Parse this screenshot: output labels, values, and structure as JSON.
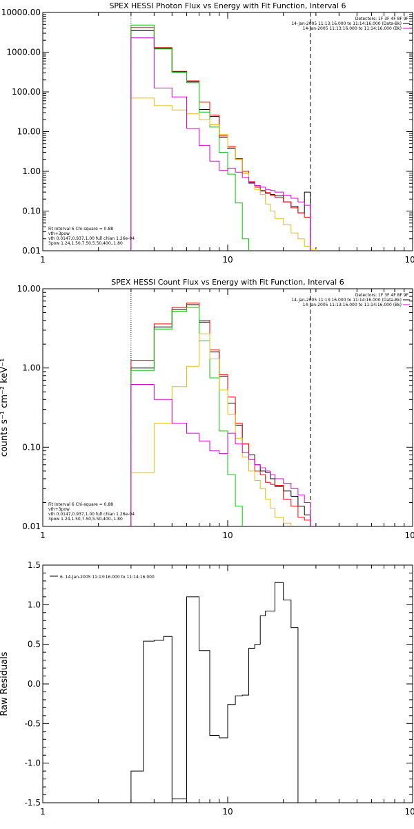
{
  "chart_data": [
    {
      "type": "line",
      "title": "SPEX HESSI Photon Flux vs Energy with Fit Function, Interval 6",
      "xlabel": "",
      "ylabel": "",
      "x_scale": "log",
      "y_scale": "log",
      "xlim": [
        1,
        100
      ],
      "ylim": [
        0.01,
        10000
      ],
      "x_ticks": [
        "1",
        "10",
        "100"
      ],
      "y_ticks": [
        "0.01",
        "0.10",
        "1.00",
        "10.00",
        "100.00",
        "1000.00",
        "10000.00"
      ],
      "y_tick_values": [
        0.01,
        0.1,
        1,
        10,
        100,
        1000,
        10000
      ],
      "vlines": [
        {
          "x": 3,
          "style": "dotted"
        },
        {
          "x": 28,
          "style": "dashed"
        }
      ],
      "legend_top": [
        "Detectors: 1F 3F 4F 8F 9F",
        "14-Jan-2005 11:13:16.000 to 11:14:16.000 (Data-Bk)",
        "14-Jan-2005 11:13:16.000 to 11:14:16.000 (Bk)"
      ],
      "legend_bottom": [
        "Fit Interval 6   Chi-square = 0.88",
        "vth+3pow",
        "vth 0.0147,0.937,1.00  full chian 1.26e-04",
        "3pow 1.24,1.50,7.50,5.50,400.,1.80"
      ],
      "legend_bottom_colors": [
        "",
        "#ff0000",
        "#00cc00",
        "#e6c000"
      ],
      "edges": [
        3,
        4,
        5,
        6,
        7,
        8,
        9,
        10,
        11,
        12,
        13,
        14,
        15,
        16,
        17,
        18,
        20,
        22,
        24,
        26,
        28,
        30
      ],
      "series": [
        {
          "color": "#000000",
          "values": [
            3500,
            1250,
            320,
            180,
            36,
            24,
            7.2,
            3.8,
            2.0,
            0.9,
            0.52,
            0.4,
            0.32,
            0.28,
            0.26,
            0.24,
            0.17,
            0.13,
            0.09,
            0.3,
            null
          ]
        },
        {
          "color": "#ff0000",
          "values": [
            4200,
            1300,
            330,
            190,
            55,
            26,
            7.8,
            4.2,
            2.1,
            1.0,
            0.55,
            0.4,
            0.33,
            0.29,
            0.25,
            0.22,
            0.17,
            0.12,
            0.09,
            0.07,
            null
          ]
        },
        {
          "color": "#00cc00",
          "values": [
            4800,
            1200,
            310,
            170,
            31,
            13,
            3.0,
            0.85,
            0.16,
            0.02,
            null,
            null,
            null,
            null,
            null,
            null,
            null,
            null,
            null,
            null,
            null
          ]
        },
        {
          "color": "#e6c000",
          "values": [
            70,
            45,
            35,
            28,
            20,
            15,
            8.5,
            4.0,
            2.0,
            0.9,
            0.5,
            0.35,
            0.26,
            0.15,
            0.1,
            0.065,
            0.045,
            0.028,
            0.02,
            0.013,
            0.011
          ]
        },
        {
          "color": "#dd00dd",
          "values": [
            2300,
            125,
            75,
            12,
            4.5,
            1.8,
            1.05,
            1.2,
            0.95,
            0.7,
            0.5,
            0.44,
            0.4,
            0.35,
            0.33,
            0.3,
            0.25,
            0.21,
            0.17,
            0.14,
            null
          ]
        }
      ]
    },
    {
      "type": "line",
      "title": "SPEX HESSI Count Flux vs Energy with Fit Function, Interval 6",
      "xlabel": "",
      "ylabel": "counts s⁻¹ cm⁻² keV⁻¹",
      "x_scale": "log",
      "y_scale": "log",
      "xlim": [
        1,
        100
      ],
      "ylim": [
        0.01,
        10
      ],
      "x_ticks": [
        "1",
        "10",
        "100"
      ],
      "y_ticks": [
        "0.01",
        "0.10",
        "1.00",
        "10.00"
      ],
      "y_tick_values": [
        0.01,
        0.1,
        1,
        10
      ],
      "vlines": [
        {
          "x": 3,
          "style": "dotted"
        },
        {
          "x": 28,
          "style": "dashed"
        }
      ],
      "legend_top": [
        "Detectors: 1F 3F 4F 8F 9F",
        "14-Jan-2005 11:13:16.000 to 11:14:16.000 (Data-Bk)",
        "14-Jan-2005 11:13:16.000 to 11:14:16.000 (Bk)"
      ],
      "legend_bottom": [
        "Fit Interval 6   Chi-square = 0.88",
        "vth+3pow",
        "vth 0.0147,0.937,1.00  full chian 1.26e-04",
        "3pow 1.24,1.50,7.50,5.50,400.,1.80"
      ],
      "legend_bottom_colors": [
        "",
        "#ff0000",
        "#00cc00",
        "#e6c000"
      ],
      "edges": [
        3,
        4,
        5,
        6,
        7,
        8,
        9,
        10,
        11,
        12,
        13,
        14,
        15,
        16,
        17,
        18,
        20,
        22,
        24,
        26,
        28,
        30
      ],
      "series": [
        {
          "color": "#000000",
          "values": [
            1.0,
            3.3,
            5.5,
            6.3,
            3.8,
            1.6,
            0.78,
            0.36,
            0.19,
            0.11,
            0.08,
            0.06,
            0.05,
            0.048,
            0.04,
            0.032,
            0.028,
            0.024,
            0.018,
            0.014,
            null
          ]
        },
        {
          "color": "#ff0000",
          "values": [
            1.25,
            3.6,
            5.8,
            6.6,
            4.0,
            1.7,
            0.82,
            0.43,
            0.2,
            0.11,
            0.07,
            0.05,
            0.045,
            0.036,
            0.034,
            0.033,
            0.022,
            0.018,
            0.013,
            0.012,
            null
          ]
        },
        {
          "color": "#00cc00",
          "values": [
            0.93,
            3.1,
            5.2,
            5.8,
            2.2,
            0.75,
            0.16,
            0.045,
            0.018,
            null,
            null,
            null,
            null,
            null,
            null,
            null,
            null,
            null,
            null,
            null,
            null
          ]
        },
        {
          "color": "#e6c000",
          "values": [
            0.048,
            0.2,
            0.58,
            1.05,
            2.7,
            1.3,
            0.53,
            0.26,
            0.13,
            0.075,
            0.05,
            0.038,
            0.03,
            0.022,
            0.017,
            0.013,
            0.011,
            null,
            null,
            null,
            null
          ]
        },
        {
          "color": "#dd00dd",
          "values": [
            0.62,
            0.4,
            0.2,
            0.15,
            0.12,
            0.09,
            0.083,
            0.15,
            0.11,
            0.085,
            0.07,
            0.06,
            0.055,
            0.05,
            0.045,
            0.04,
            0.035,
            0.03,
            0.025,
            0.02,
            null
          ]
        }
      ]
    },
    {
      "type": "line",
      "title": "",
      "xlabel": "",
      "ylabel": "Raw Residuals",
      "x_scale": "log",
      "y_scale": "linear",
      "xlim": [
        1,
        100
      ],
      "ylim": [
        -1.5,
        1.5
      ],
      "x_ticks": [
        "1",
        "10",
        "100"
      ],
      "y_ticks": [
        "-1.5",
        "-1.0",
        "-0.5",
        "0.0",
        "0.5",
        "1.0",
        "1.5"
      ],
      "y_tick_values": [
        -1.5,
        -1.0,
        -0.5,
        0.0,
        0.5,
        1.0,
        1.5
      ],
      "legend_top_left": "6. 14-Jan-2005 11:13:16.000 to 11:14:16.000",
      "edges": [
        3,
        3.5,
        4,
        4.5,
        5,
        6,
        7,
        8,
        9,
        10,
        11,
        12,
        13,
        14,
        15,
        16,
        18,
        20,
        22,
        24,
        26,
        28
      ],
      "series": [
        {
          "color": "#000000",
          "values": [
            -1.1,
            0.54,
            0.55,
            0.6,
            -1.45,
            1.1,
            0.42,
            -0.65,
            -0.68,
            -0.26,
            -0.15,
            -0.14,
            0.45,
            0.5,
            0.86,
            0.92,
            1.28,
            1.06,
            0.71,
            null,
            null
          ]
        }
      ]
    }
  ]
}
